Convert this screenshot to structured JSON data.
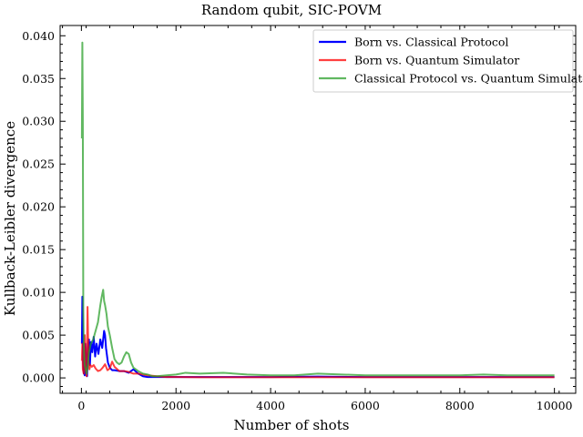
{
  "chart_data": {
    "type": "line",
    "title": "Random qubit, SIC-POVM",
    "xlabel": "Number of shots",
    "ylabel": "Kullback-Leibler divergence",
    "xlim": [
      -450,
      10450
    ],
    "ylim": [
      -0.0018,
      0.0412
    ],
    "xticks": [
      0,
      2000,
      4000,
      6000,
      8000,
      10000
    ],
    "yticks": [
      0.0,
      0.005,
      0.01,
      0.015,
      0.02,
      0.025,
      0.03,
      0.035,
      0.04
    ],
    "xtick_labels": [
      "0",
      "2000",
      "4000",
      "6000",
      "8000",
      "10000"
    ],
    "ytick_labels": [
      "0.000",
      "0.005",
      "0.010",
      "0.015",
      "0.020",
      "0.025",
      "0.030",
      "0.035",
      "0.040"
    ],
    "grid": false,
    "legend_position": "top-right",
    "series": [
      {
        "name": "Born vs. Classical Protocol",
        "color": "#0000ff",
        "x": [
          10,
          20,
          35,
          50,
          60,
          70,
          80,
          100,
          120,
          140,
          160,
          180,
          200,
          230,
          260,
          290,
          320,
          360,
          400,
          440,
          480,
          500,
          520,
          560,
          600,
          650,
          700,
          800,
          900,
          1000,
          1100,
          1200,
          1300,
          1400,
          1600,
          1800,
          2000,
          2500,
          3000,
          3500,
          4000,
          5000,
          6000,
          7000,
          8000,
          9000,
          10000
        ],
        "y": [
          0.004,
          0.0095,
          0.002,
          0.0005,
          0.0015,
          0.0003,
          0.004,
          0.0025,
          0.0002,
          0.0035,
          0.0045,
          0.0015,
          0.0042,
          0.003,
          0.0048,
          0.0025,
          0.004,
          0.0028,
          0.0045,
          0.0035,
          0.0055,
          0.005,
          0.0035,
          0.0018,
          0.0012,
          0.0009,
          0.0009,
          0.0008,
          0.0008,
          0.0006,
          0.001,
          0.0005,
          0.0002,
          0.0001,
          0.0001,
          0.0001,
          0.0001,
          0.0001,
          0.0001,
          0.0001,
          0.0001,
          0.00015,
          0.0001,
          0.0001,
          0.0001,
          0.0001,
          0.0001
        ]
      },
      {
        "name": "Born vs. Quantum Simulator",
        "color": "#ff0000",
        "x": [
          10,
          20,
          30,
          50,
          70,
          90,
          110,
          130,
          150,
          170,
          190,
          220,
          260,
          300,
          350,
          400,
          450,
          500,
          550,
          600,
          650,
          700,
          800,
          900,
          1000,
          1100,
          1200,
          1400,
          1600,
          1800,
          2000,
          2500,
          3000,
          4000,
          5000,
          6000,
          7000,
          8000,
          9000,
          10000
        ],
        "y": [
          0.002,
          0.004,
          0.001,
          0.0005,
          0.005,
          0.001,
          0.0002,
          0.0083,
          0.002,
          0.001,
          0.0015,
          0.0013,
          0.0015,
          0.0011,
          0.0008,
          0.0009,
          0.0012,
          0.0016,
          0.0009,
          0.0011,
          0.0019,
          0.0013,
          0.0008,
          0.0008,
          0.0007,
          0.0005,
          0.0005,
          0.0003,
          0.0002,
          0.0001,
          0.0001,
          8e-05,
          8e-05,
          8e-05,
          8e-05,
          8e-05,
          8e-05,
          8e-05,
          8e-05,
          8e-05
        ]
      },
      {
        "name": "Classical Protocol vs. Quantum Simulator",
        "color": "#2ca02c",
        "x": [
          10,
          20,
          30,
          40,
          50,
          60,
          70,
          90,
          110,
          130,
          160,
          200,
          250,
          300,
          350,
          400,
          430,
          460,
          480,
          500,
          530,
          560,
          600,
          650,
          700,
          750,
          800,
          850,
          900,
          950,
          1000,
          1050,
          1100,
          1200,
          1300,
          1400,
          1500,
          1600,
          1800,
          2000,
          2200,
          2500,
          3000,
          3500,
          4000,
          4500,
          5000,
          5500,
          6000,
          7000,
          8000,
          8500,
          9000,
          10000
        ],
        "y": [
          0.028,
          0.0392,
          0.03,
          0.008,
          0.004,
          0.0025,
          0.0015,
          0.001,
          0.0005,
          0.0012,
          0.003,
          0.004,
          0.0045,
          0.0055,
          0.0065,
          0.0085,
          0.0095,
          0.0103,
          0.009,
          0.0085,
          0.0075,
          0.006,
          0.005,
          0.0035,
          0.0022,
          0.0018,
          0.0016,
          0.0018,
          0.0025,
          0.003,
          0.0028,
          0.0018,
          0.0012,
          0.0008,
          0.0005,
          0.0004,
          0.0002,
          0.0002,
          0.0003,
          0.0004,
          0.0006,
          0.0005,
          0.0006,
          0.0004,
          0.0003,
          0.0003,
          0.0005,
          0.0004,
          0.0003,
          0.0003,
          0.0003,
          0.0004,
          0.0003,
          0.0003
        ]
      }
    ]
  }
}
